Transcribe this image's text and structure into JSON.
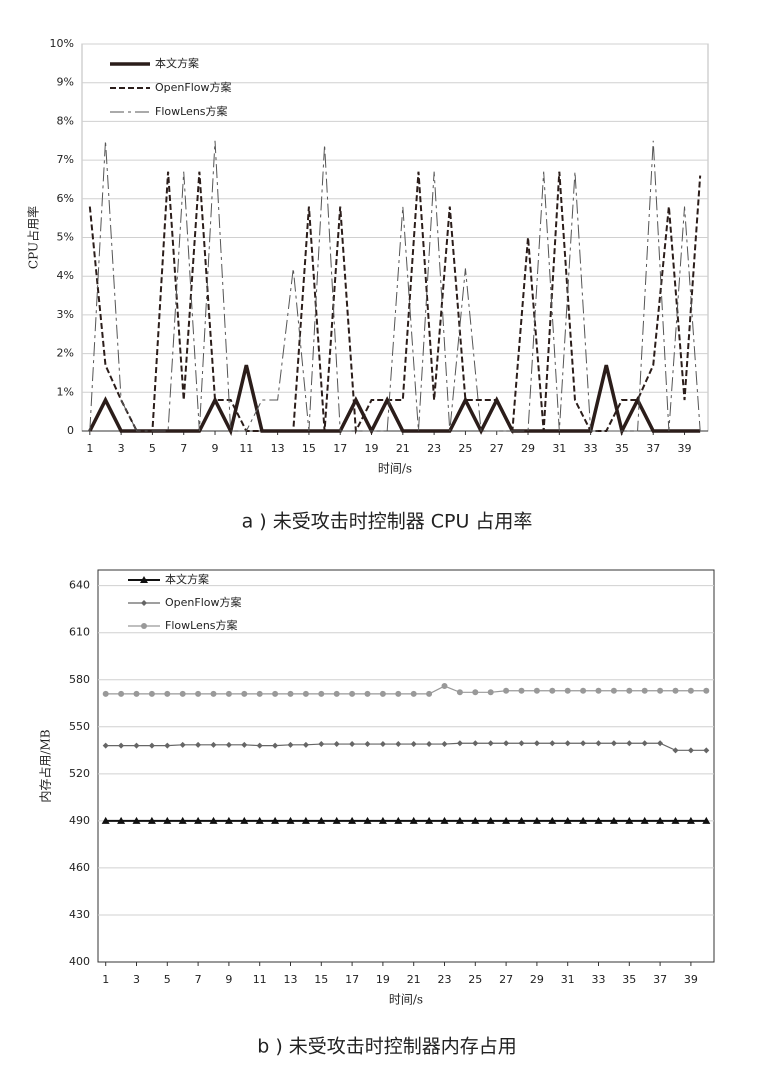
{
  "chart_data": [
    {
      "type": "line",
      "y_label": "CPU占用率",
      "x_label": "时间/s",
      "caption": "a ) 未受攻击时控制器 CPU 占用率",
      "grid": true,
      "legend": "upper left",
      "x": [
        1,
        2,
        3,
        4,
        5,
        6,
        7,
        8,
        9,
        10,
        11,
        12,
        13,
        14,
        15,
        16,
        17,
        18,
        19,
        20,
        21,
        22,
        23,
        24,
        25,
        26,
        27,
        28,
        29,
        30,
        31,
        32,
        33,
        34,
        35,
        36,
        37,
        38,
        39,
        40
      ],
      "xlim": [
        0.5,
        40.5
      ],
      "xticks": [
        1,
        3,
        5,
        7,
        9,
        11,
        13,
        15,
        17,
        19,
        21,
        23,
        25,
        27,
        29,
        31,
        33,
        35,
        37,
        39
      ],
      "ylim": [
        0,
        10
      ],
      "yticks": [
        0,
        {
          "value": 1,
          "label": "1%"
        },
        {
          "value": 2,
          "label": "2%"
        },
        {
          "value": 3,
          "label": "3%"
        },
        {
          "value": 4,
          "label": "4%"
        },
        {
          "value": 5,
          "label": "5%"
        },
        {
          "value": 6,
          "label": "6%"
        },
        {
          "value": 7,
          "label": "7%"
        },
        {
          "value": 8,
          "label": "8%"
        },
        {
          "value": 9,
          "label": "9%"
        },
        {
          "value": 10,
          "label": "10%"
        }
      ],
      "series": [
        {
          "name": "本文方案",
          "color": "#2b1d1a",
          "dash": "solid",
          "width": 3.5,
          "values": [
            0,
            0.8,
            0,
            0,
            0,
            0,
            0,
            0,
            0.8,
            0,
            1.7,
            0,
            0,
            0,
            0,
            0,
            0,
            0.8,
            0,
            0.8,
            0,
            0,
            0,
            0,
            0.8,
            0,
            0.8,
            0,
            0,
            0,
            0,
            0,
            0,
            1.7,
            0,
            0.8,
            0,
            0,
            0,
            0
          ]
        },
        {
          "name": "OpenFlow方案",
          "color": "#2b1d1a",
          "dash": "dashed",
          "width": 2,
          "values": [
            5.8,
            1.7,
            0.8,
            0,
            0,
            6.7,
            0.8,
            6.7,
            0.8,
            0.8,
            0,
            0,
            0,
            0,
            5.8,
            0,
            5.8,
            0,
            0.8,
            0.8,
            0.8,
            6.7,
            0.8,
            5.8,
            0.8,
            0.8,
            0.8,
            0,
            5,
            0,
            6.7,
            0.8,
            0,
            0,
            0.8,
            0.8,
            1.7,
            5.8,
            0.8,
            6.6
          ]
        },
        {
          "name": "FlowLens方案",
          "color": "#555555",
          "dash": "dashdot",
          "width": 1,
          "values": [
            0,
            7.5,
            0.8,
            0,
            0,
            0,
            6.7,
            0,
            7.5,
            0,
            0,
            0.8,
            0.8,
            4.2,
            0,
            7.4,
            0,
            0,
            0,
            0,
            5.8,
            0,
            6.7,
            0,
            4.2,
            0,
            0,
            0,
            0,
            6.7,
            0,
            6.7,
            0,
            0,
            0,
            0,
            7.5,
            0,
            5.8,
            0
          ]
        }
      ]
    },
    {
      "type": "line",
      "y_label": "内存占用/MB",
      "x_label": "时间/s",
      "caption": "b ) 未受攻击时控制器内存占用",
      "grid": true,
      "legend": "upper left",
      "x": [
        1,
        2,
        3,
        4,
        5,
        6,
        7,
        8,
        9,
        10,
        11,
        12,
        13,
        14,
        15,
        16,
        17,
        18,
        19,
        20,
        21,
        22,
        23,
        24,
        25,
        26,
        27,
        28,
        29,
        30,
        31,
        32,
        33,
        34,
        35,
        36,
        37,
        38,
        39,
        40
      ],
      "xlim": [
        0.5,
        40.5
      ],
      "xticks": [
        1,
        3,
        5,
        7,
        9,
        11,
        13,
        15,
        17,
        19,
        21,
        23,
        25,
        27,
        29,
        31,
        33,
        35,
        37,
        39
      ],
      "ylim": [
        400,
        650
      ],
      "yticks": [
        400,
        430,
        460,
        490,
        520,
        550,
        580,
        610,
        640
      ],
      "series": [
        {
          "name": "本文方案",
          "color": "#111111",
          "dash": "solid",
          "width": 2,
          "marker": "triangle",
          "values": [
            490,
            490,
            490,
            490,
            490,
            490,
            490,
            490,
            490,
            490,
            490,
            490,
            490,
            490,
            490,
            490,
            490,
            490,
            490,
            490,
            490,
            490,
            490,
            490,
            490,
            490,
            490,
            490,
            490,
            490,
            490,
            490,
            490,
            490,
            490,
            490,
            490,
            490,
            490,
            490
          ]
        },
        {
          "name": "OpenFlow方案",
          "color": "#666666",
          "dash": "solid",
          "width": 1.2,
          "marker": "diamond",
          "values": [
            538,
            538,
            538,
            538,
            538,
            538.5,
            538.5,
            538.5,
            538.5,
            538.5,
            538,
            538,
            538.5,
            538.5,
            539,
            539,
            539,
            539,
            539,
            539,
            539,
            539,
            539,
            539.5,
            539.5,
            539.5,
            539.5,
            539.5,
            539.5,
            539.5,
            539.5,
            539.5,
            539.5,
            539.5,
            539.5,
            539.5,
            539.5,
            535,
            535,
            535
          ]
        },
        {
          "name": "FlowLens方案",
          "color": "#999999",
          "dash": "solid",
          "width": 1.2,
          "marker": "circle",
          "values": [
            571,
            571,
            571,
            571,
            571,
            571,
            571,
            571,
            571,
            571,
            571,
            571,
            571,
            571,
            571,
            571,
            571,
            571,
            571,
            571,
            571,
            571,
            576,
            572,
            572,
            572,
            573,
            573,
            573,
            573,
            573,
            573,
            573,
            573,
            573,
            573,
            573,
            573,
            573,
            573
          ]
        }
      ]
    }
  ]
}
